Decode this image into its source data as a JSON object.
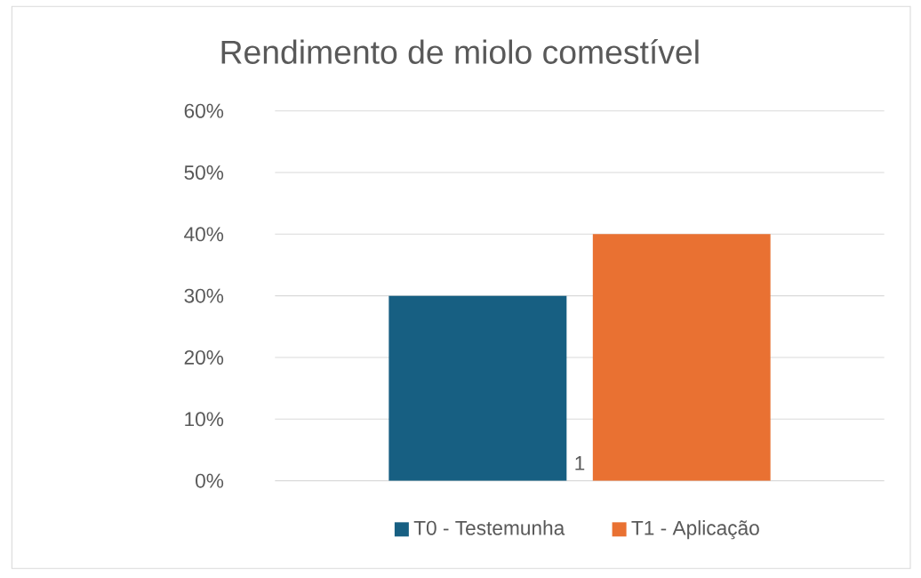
{
  "chart_data": {
    "type": "bar",
    "title": "Rendimento de miolo comestível",
    "categories": [
      "1"
    ],
    "series": [
      {
        "name": "T0 - Testemunha",
        "color": "#175f82",
        "values": [
          30
        ]
      },
      {
        "name": "T1 - Aplicação",
        "color": "#e97132",
        "values": [
          40
        ]
      }
    ],
    "ylim": [
      0,
      60
    ],
    "yticks": [
      {
        "value": 0,
        "label": "0%"
      },
      {
        "value": 10,
        "label": "10%"
      },
      {
        "value": 20,
        "label": "20%"
      },
      {
        "value": 30,
        "label": "30%"
      },
      {
        "value": 40,
        "label": "40%"
      },
      {
        "value": 50,
        "label": "50%"
      },
      {
        "value": 60,
        "label": "60%"
      }
    ],
    "grid": "y",
    "legend": "bottom"
  }
}
